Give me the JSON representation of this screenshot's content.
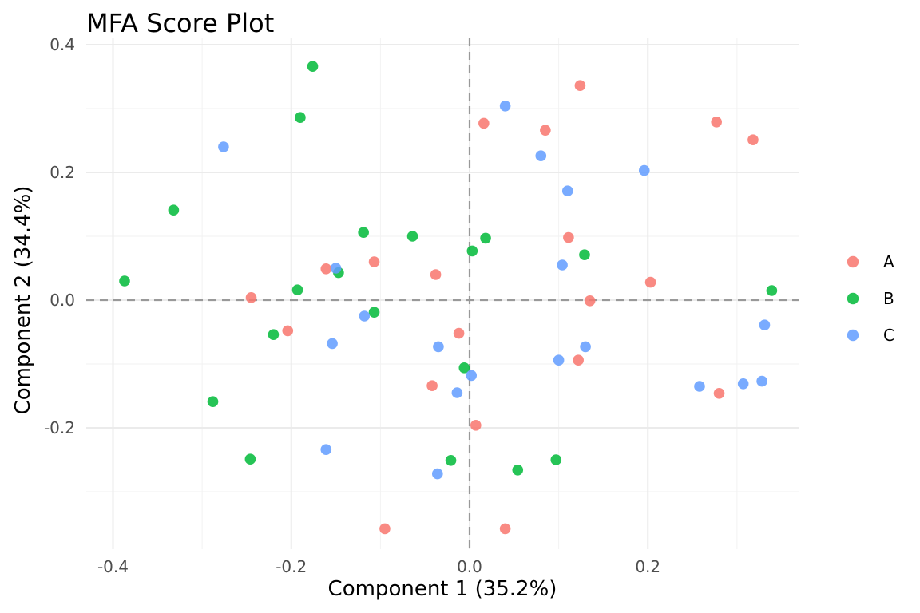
{
  "chart_data": {
    "type": "scatter",
    "title": "MFA Score Plot",
    "xlabel": "Component 1 (35.2%)",
    "ylabel": "Component 2 (34.4%)",
    "xlim": [
      -0.43,
      0.37
    ],
    "ylim": [
      -0.39,
      0.41
    ],
    "x_ticks": [
      -0.4,
      -0.2,
      0.0,
      0.2
    ],
    "x_tick_labels": [
      "-0.4",
      "-0.2",
      "0.0",
      "0.2"
    ],
    "y_ticks": [
      -0.2,
      0.0,
      0.2,
      0.4
    ],
    "y_tick_labels": [
      "-0.2",
      "0.0",
      "0.2",
      "0.4"
    ],
    "grid": true,
    "reference_lines": {
      "x": 0,
      "y": 0
    },
    "legend": {
      "position": "right"
    },
    "series": [
      {
        "name": "A",
        "color": "#F8766D",
        "points": [
          [
            0.124,
            0.336
          ],
          [
            0.016,
            0.277
          ],
          [
            0.085,
            0.266
          ],
          [
            0.277,
            0.279
          ],
          [
            0.318,
            0.251
          ],
          [
            0.111,
            0.098
          ],
          [
            -0.107,
            0.06
          ],
          [
            -0.161,
            0.049
          ],
          [
            -0.038,
            0.04
          ],
          [
            0.203,
            0.028
          ],
          [
            -0.245,
            0.004
          ],
          [
            0.135,
            -0.001
          ],
          [
            -0.204,
            -0.048
          ],
          [
            -0.012,
            -0.052
          ],
          [
            0.122,
            -0.094
          ],
          [
            -0.042,
            -0.134
          ],
          [
            0.28,
            -0.146
          ],
          [
            0.007,
            -0.196
          ],
          [
            -0.095,
            -0.358
          ],
          [
            0.04,
            -0.358
          ]
        ]
      },
      {
        "name": "B",
        "color": "#00BA38",
        "points": [
          [
            -0.176,
            0.366
          ],
          [
            -0.19,
            0.286
          ],
          [
            -0.332,
            0.141
          ],
          [
            -0.119,
            0.106
          ],
          [
            -0.064,
            0.1
          ],
          [
            0.018,
            0.097
          ],
          [
            0.003,
            0.077
          ],
          [
            0.129,
            0.071
          ],
          [
            -0.147,
            0.043
          ],
          [
            -0.387,
            0.03
          ],
          [
            -0.193,
            0.016
          ],
          [
            0.339,
            0.015
          ],
          [
            -0.107,
            -0.019
          ],
          [
            -0.22,
            -0.054
          ],
          [
            -0.006,
            -0.106
          ],
          [
            -0.288,
            -0.159
          ],
          [
            -0.246,
            -0.249
          ],
          [
            -0.021,
            -0.251
          ],
          [
            0.097,
            -0.25
          ],
          [
            0.054,
            -0.266
          ]
        ]
      },
      {
        "name": "C",
        "color": "#619CFF",
        "points": [
          [
            0.04,
            0.304
          ],
          [
            -0.276,
            0.24
          ],
          [
            0.08,
            0.226
          ],
          [
            0.196,
            0.203
          ],
          [
            0.11,
            0.171
          ],
          [
            0.104,
            0.055
          ],
          [
            -0.15,
            0.05
          ],
          [
            -0.118,
            -0.025
          ],
          [
            0.331,
            -0.039
          ],
          [
            -0.154,
            -0.068
          ],
          [
            -0.035,
            -0.073
          ],
          [
            0.13,
            -0.073
          ],
          [
            0.1,
            -0.094
          ],
          [
            0.002,
            -0.118
          ],
          [
            -0.014,
            -0.145
          ],
          [
            0.258,
            -0.135
          ],
          [
            0.307,
            -0.131
          ],
          [
            0.328,
            -0.127
          ],
          [
            -0.161,
            -0.234
          ],
          [
            -0.036,
            -0.272
          ]
        ]
      }
    ]
  }
}
